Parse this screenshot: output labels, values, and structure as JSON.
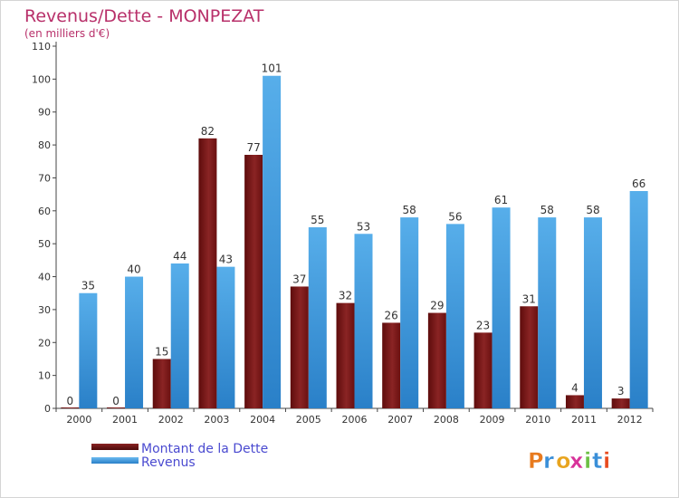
{
  "chart_data": {
    "type": "bar",
    "title": "Revenus/Dette - MONPEZAT",
    "subtitle": "(en milliers d'€)",
    "categories": [
      "2000",
      "2001",
      "2002",
      "2003",
      "2004",
      "2005",
      "2006",
      "2007",
      "2008",
      "2009",
      "2010",
      "2011",
      "2012"
    ],
    "series": [
      {
        "name": "Montant de la Dette",
        "color": "#7a1616",
        "values": [
          0,
          0,
          15,
          82,
          77,
          37,
          32,
          26,
          29,
          23,
          31,
          4,
          3
        ]
      },
      {
        "name": "Revenus",
        "color": "#3d9ae0",
        "values": [
          35,
          40,
          44,
          43,
          101,
          55,
          53,
          58,
          56,
          61,
          58,
          58,
          66
        ]
      }
    ],
    "ylim": [
      0,
      110
    ],
    "yticks": [
      0,
      10,
      20,
      30,
      40,
      50,
      60,
      70,
      80,
      90,
      100,
      110
    ],
    "grid": false,
    "legend_position": "bottom-left"
  },
  "branding": {
    "logo_text": "Proxiti"
  }
}
